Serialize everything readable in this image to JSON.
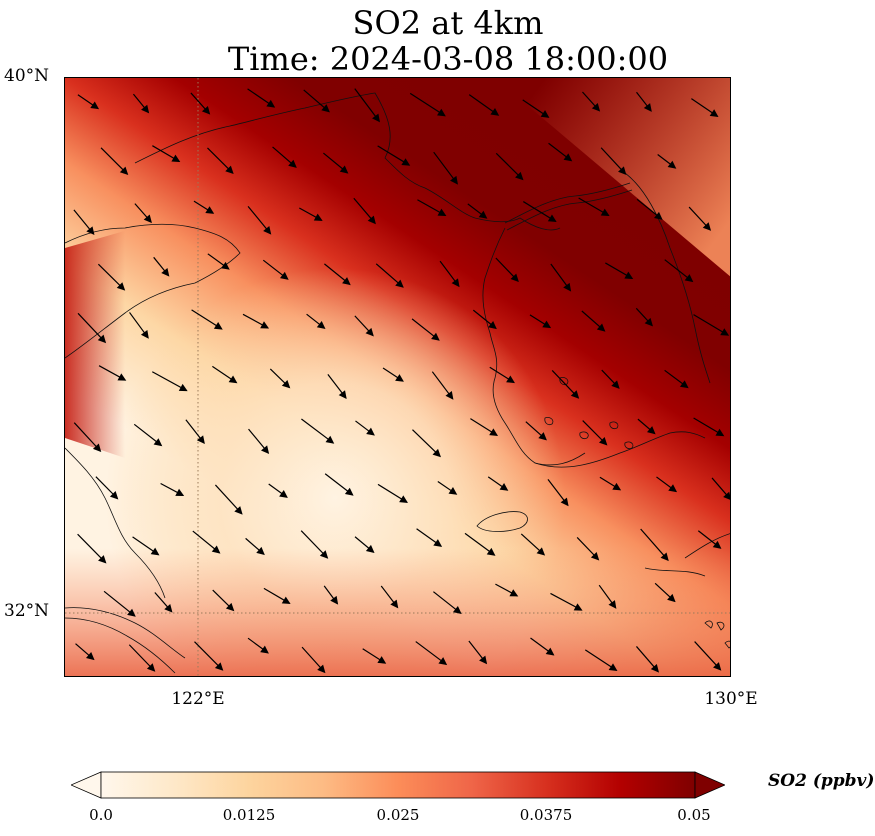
{
  "title": "SO2 at 4km",
  "subtitle": "Time: 2024-03-08 18:00:00",
  "map": {
    "lat_range": [
      30.8,
      40
    ],
    "lon_range": [
      120,
      130
    ],
    "lat_ticks": [
      "40°N",
      "32°N"
    ],
    "lon_ticks": [
      "122°E",
      "130°E"
    ],
    "gridlines": {
      "style": "dotted",
      "color": "#9a7a5a"
    },
    "field_colormap": "OrRd",
    "high_concentration_band": "diagonal band from northwest (Bohai / Yellow Sea) to southeast (Korea, Japan)",
    "low_concentration_area": "centered over East China Sea / Shandong south",
    "wind_vectors": "arrows pointing east-southeast"
  },
  "colorbar": {
    "label": "SO2 (ppbv)",
    "ticks": [
      "0.0",
      "0.0125",
      "0.025",
      "0.0375",
      "0.05"
    ],
    "min": 0.0,
    "max": 0.05,
    "extend": "both",
    "colors": [
      "#fff7ec",
      "#fee8c8",
      "#fdd49e",
      "#fdbb84",
      "#fc8d59",
      "#ef6548",
      "#d7301f",
      "#b30000",
      "#7f0000"
    ]
  }
}
